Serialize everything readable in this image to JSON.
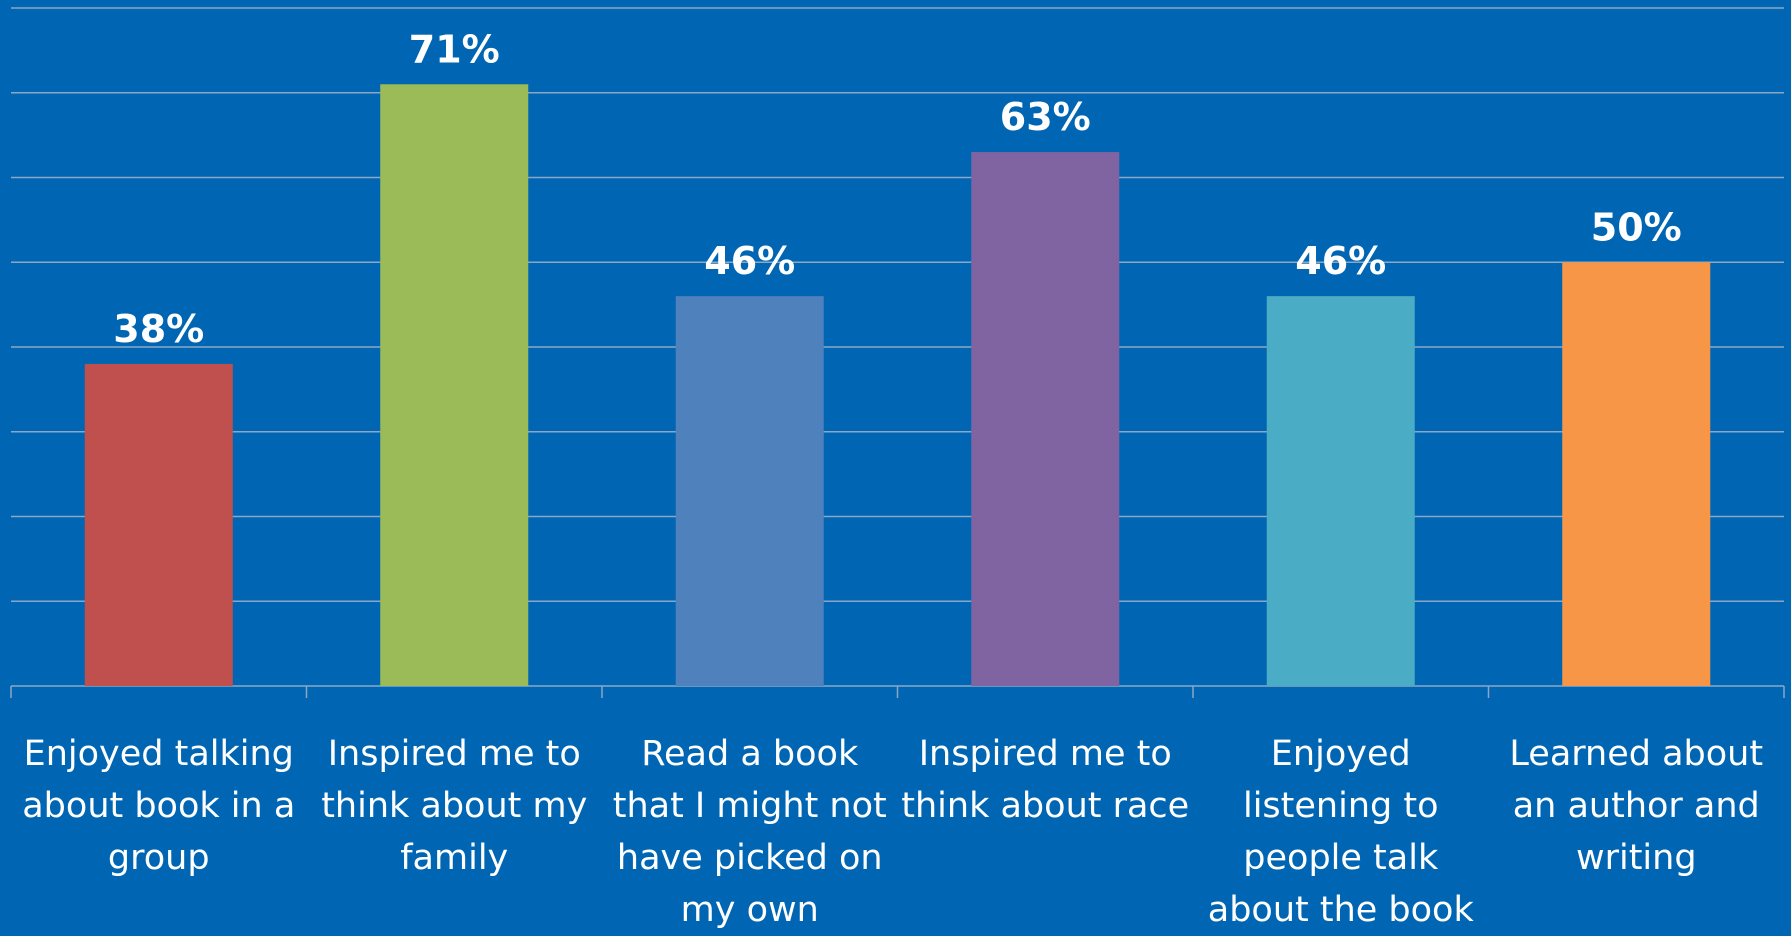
{
  "chart_data": {
    "type": "bar",
    "categories": [
      "Enjoyed talking about book in a group",
      "Inspired me to think about my family",
      "Read a book that I might not have picked on my own",
      "Inspired me to think about race",
      "Enjoyed listening to people talk about  the book",
      "Learned about an author and writing"
    ],
    "values": [
      38,
      71,
      46,
      63,
      46,
      50
    ],
    "value_labels": [
      "38%",
      "71%",
      "46%",
      "63%",
      "46%",
      "50%"
    ],
    "colors": [
      "#c0504d",
      "#9bbb59",
      "#4f81bd",
      "#8064a2",
      "#4bacc6",
      "#f79646"
    ],
    "ylim": [
      0,
      80
    ],
    "grid": true,
    "background": "#0066b3",
    "gridline_color": "#8aa7c4"
  }
}
